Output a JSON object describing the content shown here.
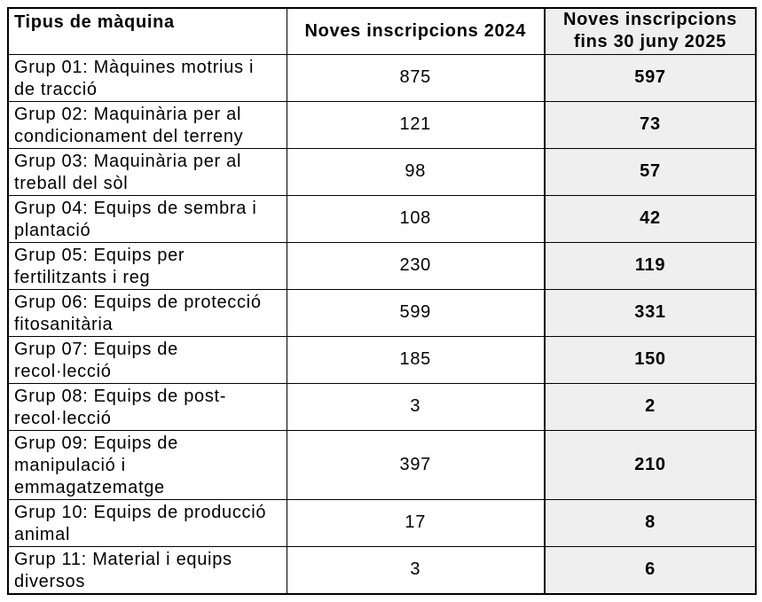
{
  "page": {
    "background": "#ffffff"
  },
  "colors": {
    "border": "#000000",
    "text": "#000000",
    "highlight_column_bg": "#efefef"
  },
  "chart_data": {
    "type": "table",
    "columns": [
      "Tipus de màquina",
      "Noves inscripcions 2024",
      "Noves inscripcions fins 30 juny 2025"
    ],
    "categories": [
      "Grup 01: Màquines motrius i de tracció",
      "Grup 02: Maquinària per al condicionament del terreny",
      "Grup 03: Maquinària per al treball del sòl",
      "Grup 04: Equips de sembra i plantació",
      "Grup 05: Equips per fertilitzants i reg",
      "Grup 06: Equips de protecció fitosanitària",
      "Grup 07: Equips de recol·lecció",
      "Grup 08: Equips de post-recol·lecció",
      "Grup 09: Equips de manipulació i emmagatzematge",
      "Grup 10: Equips de producció animal",
      "Grup 11: Material i equips diversos"
    ],
    "series": [
      {
        "name": "Noves inscripcions 2024",
        "values": [
          875,
          121,
          98,
          108,
          230,
          599,
          185,
          3,
          397,
          17,
          3
        ]
      },
      {
        "name": "Noves inscripcions fins 30 juny 2025",
        "values": [
          597,
          73,
          57,
          42,
          119,
          331,
          150,
          2,
          210,
          8,
          6
        ]
      }
    ],
    "layout": {
      "highlighted_column": "Noves inscripcions fins 30 juny 2025",
      "grid": true,
      "legend_position": "none"
    }
  }
}
